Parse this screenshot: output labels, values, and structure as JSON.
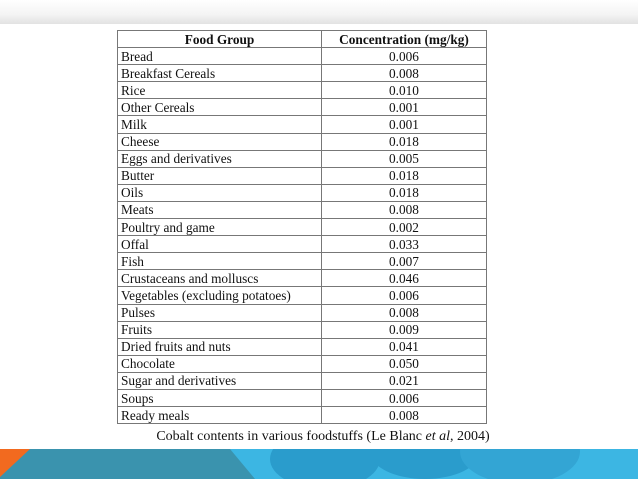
{
  "table": {
    "headers": [
      "Food Group",
      "Concentration (mg/kg)"
    ],
    "rows": [
      [
        "Bread",
        "0.006"
      ],
      [
        "Breakfast Cereals",
        "0.008"
      ],
      [
        "Rice",
        "0.010"
      ],
      [
        "Other Cereals",
        "0.001"
      ],
      [
        "Milk",
        "0.001"
      ],
      [
        "Cheese",
        "0.018"
      ],
      [
        "Eggs and derivatives",
        "0.005"
      ],
      [
        "Butter",
        "0.018"
      ],
      [
        "Oils",
        "0.018"
      ],
      [
        "Meats",
        "0.008"
      ],
      [
        "Poultry and game",
        "0.002"
      ],
      [
        "Offal",
        "0.033"
      ],
      [
        "Fish",
        "0.007"
      ],
      [
        "Crustaceans and molluscs",
        "0.046"
      ],
      [
        "Vegetables (excluding potatoes)",
        "0.006"
      ],
      [
        "Pulses",
        "0.008"
      ],
      [
        "Fruits",
        "0.009"
      ],
      [
        "Dried fruits and nuts",
        "0.041"
      ],
      [
        "Chocolate",
        "0.050"
      ],
      [
        "Sugar and derivatives",
        "0.021"
      ],
      [
        "Soups",
        "0.006"
      ],
      [
        "Ready meals",
        "0.008"
      ]
    ]
  },
  "caption": {
    "prefix": "Cobalt contents in various foodstuffs (Le Blanc ",
    "italic": "et al",
    "suffix": ", 2004)"
  },
  "colors": {
    "band": "#3cb6e3",
    "band_dark": "#3a93ae",
    "accent": "#f26a1f"
  }
}
